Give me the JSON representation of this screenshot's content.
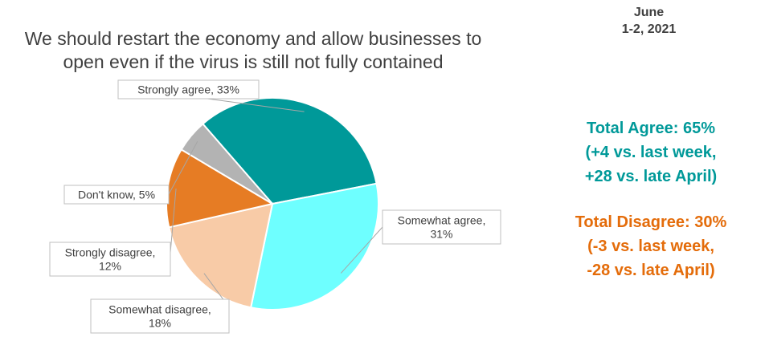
{
  "date": {
    "line1": "June",
    "line2": "1-2, 2021"
  },
  "summary": {
    "agree": {
      "line1": "Total Agree: 65%",
      "line2": "(+4 vs. last week,",
      "line3": "+28 vs. late April)"
    },
    "disagree": {
      "line1": "Total Disagree: 30%",
      "line2": "(-3 vs. last week,",
      "line3": "-28 vs. late April)"
    }
  },
  "chart_data": {
    "type": "pie",
    "title": [
      "We should restart the economy and allow businesses to",
      "open even if the virus is still not fully contained"
    ],
    "slices": [
      {
        "label": [
          "Strongly agree, 33%"
        ],
        "value": 33,
        "color": "#009999"
      },
      {
        "label": [
          "Somewhat agree,",
          "31%"
        ],
        "value": 31,
        "color": "#6effff"
      },
      {
        "label": [
          "Somewhat disagree,",
          "18%"
        ],
        "value": 18,
        "color": "#f8cba7"
      },
      {
        "label": [
          "Strongly disagree,",
          "12%"
        ],
        "value": 12,
        "color": "#e67c24"
      },
      {
        "label": [
          "Don't know, 5%"
        ],
        "value": 5,
        "color": "#b3b3b3"
      }
    ]
  }
}
